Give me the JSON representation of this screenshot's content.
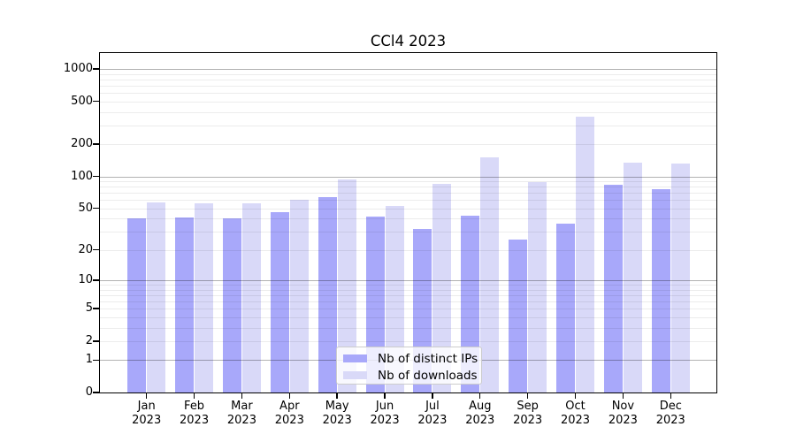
{
  "title": "CCl4 2023",
  "chart_data": {
    "type": "bar",
    "title": "CCl4 2023",
    "xlabel": "",
    "ylabel": "",
    "categories": [
      "Jan 2023",
      "Feb 2023",
      "Mar 2023",
      "Apr 2023",
      "May 2023",
      "Jun 2023",
      "Jul 2023",
      "Aug 2023",
      "Sep 2023",
      "Oct 2023",
      "Nov 2023",
      "Dec 2023"
    ],
    "series": [
      {
        "name": "Nb of distinct IPs",
        "color": "#a8a8fa",
        "values": [
          40,
          41,
          40,
          46,
          64,
          42,
          32,
          43,
          25,
          36,
          84,
          76
        ]
      },
      {
        "name": "Nb of downloads",
        "color": "#d9d9f8",
        "values": [
          57,
          56,
          56,
          60,
          94,
          53,
          85,
          150,
          88,
          362,
          135,
          132
        ]
      }
    ],
    "yscale": "log1p",
    "ylim": [
      0,
      1407
    ],
    "yticks": [
      0,
      1,
      2,
      5,
      10,
      20,
      50,
      100,
      200,
      500,
      1000
    ],
    "grid": "horizontal, major and minor, drawn over bars",
    "legend_position": "lower center inside plot"
  },
  "colors": {
    "axis": "#000000",
    "major_grid": "#b3b3b3",
    "minor_grid": "#ececec",
    "legend_border": "#cccccc",
    "legend_background": "rgba(255,255,255,0.8)"
  }
}
